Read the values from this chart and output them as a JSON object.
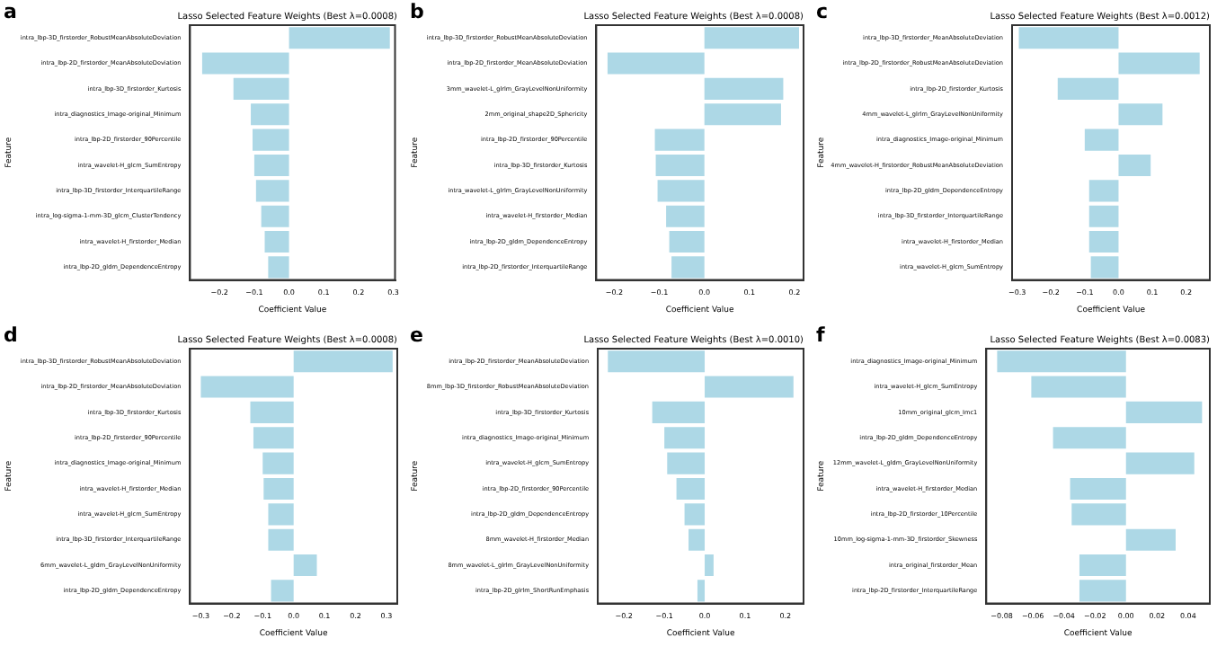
{
  "chart_data": [
    {
      "type": "bar",
      "orientation": "horizontal",
      "title": "Lasso Selected Feature Weights (Best λ=0.0008)",
      "xlabel": "Coefficient Value",
      "ylabel": "Feature",
      "annotations": [
        "a"
      ],
      "color": "#add8e6",
      "grid": false,
      "legend": false,
      "categories": [
        "intra_lbp-3D_firstorder_RobustMeanAbsoluteDeviation",
        "intra_lbp-2D_firstorder_MeanAbsoluteDeviation",
        "intra_lbp-3D_firstorder_Kurtosis",
        "intra_diagnostics_Image-original_Minimum",
        "intra_lbp-2D_firstorder_90Percentile",
        "intra_wavelet-H_glcm_SumEntropy",
        "intra_lbp-3D_firstorder_InterquartileRange",
        "intra_log-sigma-1-mm-3D_glcm_ClusterTendency",
        "intra_wavelet-H_firstorder_Median",
        "intra_lbp-2D_gldm_DependenceEntropy"
      ],
      "values": [
        0.29,
        -0.25,
        -0.16,
        -0.11,
        -0.105,
        -0.1,
        -0.095,
        -0.08,
        -0.07,
        -0.06
      ],
      "xlim": [
        -0.285,
        0.305
      ],
      "xticks": [
        {
          "value": -0.2,
          "label": "−0.2"
        },
        {
          "value": -0.1,
          "label": "−0.1"
        },
        {
          "value": 0,
          "label": "0.0"
        },
        {
          "value": 0.1,
          "label": "0.1"
        },
        {
          "value": 0.2,
          "label": "0.2"
        },
        {
          "value": 0.3,
          "label": "0.3"
        }
      ]
    },
    {
      "type": "bar",
      "orientation": "horizontal",
      "title": "Lasso Selected Feature Weights (Best λ=0.0008)",
      "xlabel": "Coefficient Value",
      "ylabel": "Feature",
      "annotations": [
        "b"
      ],
      "color": "#add8e6",
      "grid": false,
      "legend": false,
      "categories": [
        "intra_lbp-3D_firstorder_RobustMeanAbsoluteDeviation",
        "intra_lbp-2D_firstorder_MeanAbsoluteDeviation",
        "3mm_wavelet-L_glrlm_GrayLevelNonUniformity",
        "2mm_original_shape2D_Sphericity",
        "intra_lbp-2D_firstorder_90Percentile",
        "intra_lbp-3D_firstorder_Kurtosis",
        "intra_wavelet-L_glrlm_GrayLevelNonUniformity",
        "intra_wavelet-H_firstorder_Median",
        "intra_lbp-2D_gldm_DependenceEntropy",
        "intra_lbp-2D_firstorder_InterquartileRange"
      ],
      "values": [
        0.21,
        -0.215,
        0.175,
        0.17,
        -0.11,
        -0.108,
        -0.104,
        -0.085,
        -0.078,
        -0.073
      ],
      "xlim": [
        -0.24,
        0.22
      ],
      "xticks": [
        {
          "value": -0.2,
          "label": "−0.2"
        },
        {
          "value": -0.1,
          "label": "−0.1"
        },
        {
          "value": 0,
          "label": "0.0"
        },
        {
          "value": 0.1,
          "label": "0.1"
        },
        {
          "value": 0.2,
          "label": "0.2"
        }
      ]
    },
    {
      "type": "bar",
      "orientation": "horizontal",
      "title": "Lasso Selected Feature Weights (Best λ=0.0012)",
      "xlabel": "Coefficient Value",
      "ylabel": "Feature",
      "annotations": [
        "c"
      ],
      "color": "#add8e6",
      "grid": false,
      "legend": false,
      "categories": [
        "intra_lbp-3D_firstorder_MeanAbsoluteDeviation",
        "intra_lbp-2D_firstorder_RobustMeanAbsoluteDeviation",
        "intra_lbp-2D_firstorder_Kurtosis",
        "4mm_wavelet-L_glrlm_GrayLevelNonUniformity",
        "intra_diagnostics_Image-original_Minimum",
        "4mm_wavelet-H_firstorder_RobustMeanAbsoluteDeviation",
        "intra_lbp-2D_gldm_DependenceEntropy",
        "intra_lbp-3D_firstorder_InterquartileRange",
        "intra_wavelet-H_firstorder_Median",
        "intra_wavelet-H_glcm_SumEntropy"
      ],
      "values": [
        -0.295,
        0.24,
        -0.18,
        0.13,
        -0.1,
        0.095,
        -0.087,
        -0.087,
        -0.087,
        -0.082
      ],
      "xlim": [
        -0.315,
        0.27
      ],
      "xticks": [
        {
          "value": -0.3,
          "label": "−0.3"
        },
        {
          "value": -0.2,
          "label": "−0.2"
        },
        {
          "value": -0.1,
          "label": "−0.1"
        },
        {
          "value": 0,
          "label": "0.0"
        },
        {
          "value": 0.1,
          "label": "0.1"
        },
        {
          "value": 0.2,
          "label": "0.2"
        }
      ]
    },
    {
      "type": "bar",
      "orientation": "horizontal",
      "title": "Lasso Selected Feature Weights (Best λ=0.0008)",
      "xlabel": "Coefficient Value",
      "ylabel": "Feature",
      "annotations": [
        "d"
      ],
      "color": "#add8e6",
      "grid": false,
      "legend": false,
      "categories": [
        "intra_lbp-3D_firstorder_RobustMeanAbsoluteDeviation",
        "intra_lbp-2D_firstorder_MeanAbsoluteDeviation",
        "intra_lbp-3D_firstorder_Kurtosis",
        "intra_lbp-2D_firstorder_90Percentile",
        "intra_diagnostics_Image-original_Minimum",
        "intra_wavelet-H_firstorder_Median",
        "intra_wavelet-H_glcm_SumEntropy",
        "intra_lbp-3D_firstorder_InterquartileRange",
        "6mm_wavelet-L_gldm_GrayLevelNonUniformity",
        "intra_lbp-2D_gldm_DependenceEntropy"
      ],
      "values": [
        0.32,
        -0.3,
        -0.14,
        -0.13,
        -0.1,
        -0.097,
        -0.082,
        -0.082,
        0.075,
        -0.073
      ],
      "xlim": [
        -0.335,
        0.335
      ],
      "xticks": [
        {
          "value": -0.3,
          "label": "−0.3"
        },
        {
          "value": -0.2,
          "label": "−0.2"
        },
        {
          "value": -0.1,
          "label": "−0.1"
        },
        {
          "value": 0,
          "label": "0.0"
        },
        {
          "value": 0.1,
          "label": "0.1"
        },
        {
          "value": 0.2,
          "label": "0.2"
        },
        {
          "value": 0.3,
          "label": "0.3"
        }
      ]
    },
    {
      "type": "bar",
      "orientation": "horizontal",
      "title": "Lasso Selected Feature Weights (Best λ=0.0010)",
      "xlabel": "Coefficient Value",
      "ylabel": "Feature",
      "annotations": [
        "e"
      ],
      "color": "#add8e6",
      "grid": false,
      "legend": false,
      "categories": [
        "intra_lbp-2D_firstorder_MeanAbsoluteDeviation",
        "8mm_lbp-3D_firstorder_RobustMeanAbsoluteDeviation",
        "intra_lbp-3D_firstorder_Kurtosis",
        "intra_diagnostics_Image-original_Minimum",
        "intra_wavelet-H_glcm_SumEntropy",
        "intra_lbp-2D_firstorder_90Percentile",
        "intra_lbp-2D_gldm_DependenceEntropy",
        "8mm_wavelet-H_firstorder_Median",
        "8mm_wavelet-L_glrlm_GrayLevelNonUniformity",
        "intra_lbp-2D_glrlm_ShortRunEmphasis"
      ],
      "values": [
        -0.24,
        0.22,
        -0.13,
        -0.1,
        -0.093,
        -0.07,
        -0.05,
        -0.04,
        0.022,
        -0.018
      ],
      "xlim": [
        -0.265,
        0.245
      ],
      "xticks": [
        {
          "value": -0.2,
          "label": "−0.2"
        },
        {
          "value": -0.1,
          "label": "−0.1"
        },
        {
          "value": 0,
          "label": "0.0"
        },
        {
          "value": 0.1,
          "label": "0.1"
        },
        {
          "value": 0.2,
          "label": "0.2"
        }
      ]
    },
    {
      "type": "bar",
      "orientation": "horizontal",
      "title": "Lasso Selected Feature Weights (Best λ=0.0083)",
      "xlabel": "Coefficient Value",
      "ylabel": "Feature",
      "annotations": [
        "f"
      ],
      "color": "#add8e6",
      "grid": false,
      "legend": false,
      "categories": [
        "intra_diagnostics_Image-original_Minimum",
        "intra_wavelet-H_glcm_SumEntropy",
        "10mm_original_glcm_Imc1",
        "intra_lbp-2D_gldm_DependenceEntropy",
        "12mm_wavelet-L_gldm_GrayLevelNonUniformity",
        "intra_wavelet-H_firstorder_Median",
        "intra_lbp-2D_firstorder_10Percentile",
        "10mm_log-sigma-1-mm-3D_firstorder_Skewness",
        "intra_original_firstorder_Mean",
        "intra_lbp-2D_firstorder_InterquartileRange"
      ],
      "values": [
        -0.083,
        -0.061,
        0.049,
        -0.047,
        0.044,
        -0.036,
        -0.035,
        0.032,
        -0.03,
        -0.03
      ],
      "xlim": [
        -0.09,
        0.054
      ],
      "xticks": [
        {
          "value": -0.08,
          "label": "−0.08"
        },
        {
          "value": -0.06,
          "label": "−0.06"
        },
        {
          "value": -0.04,
          "label": "−0.04"
        },
        {
          "value": -0.02,
          "label": "−0.02"
        },
        {
          "value": 0,
          "label": "0.00"
        },
        {
          "value": 0.02,
          "label": "0.02"
        },
        {
          "value": 0.04,
          "label": "0.04"
        }
      ]
    }
  ]
}
